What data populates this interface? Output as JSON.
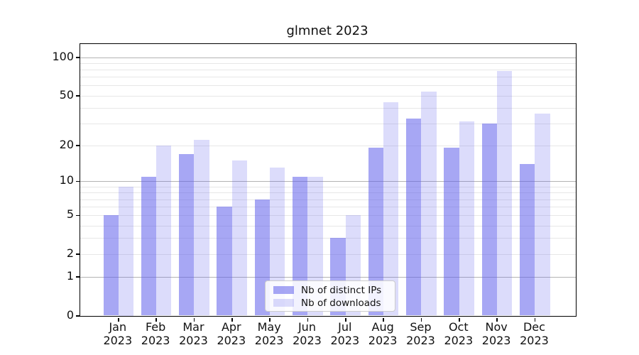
{
  "chart": {
    "title": "glmnet 2023",
    "legend_items": [
      {
        "label": "Nb of distinct IPs",
        "swatch": "dark-periwinkle"
      },
      {
        "label": "Nb of downloads",
        "swatch": "light-periwinkle"
      }
    ],
    "colors": {
      "bar_distinct_ips": "rgba(97,97,235,0.555)",
      "bar_downloads": "rgba(97,97,235,0.22)",
      "major_gridline": "#b3b3b3",
      "minor_gridline": "#e7e7e7",
      "axis": "#000000"
    }
  },
  "chart_data": {
    "type": "bar",
    "title": "glmnet 2023",
    "categories": [
      "Jan 2023",
      "Feb 2023",
      "Mar 2023",
      "Apr 2023",
      "May 2023",
      "Jun 2023",
      "Jul 2023",
      "Aug 2023",
      "Sep 2023",
      "Oct 2023",
      "Nov 2023",
      "Dec 2023"
    ],
    "series": [
      {
        "name": "Nb of distinct IPs",
        "color": "rgba(97,97,235,0.555)",
        "values": [
          5,
          11,
          17,
          6,
          7,
          11,
          3,
          19,
          33,
          19,
          30,
          14
        ]
      },
      {
        "name": "Nb of downloads",
        "color": "rgba(97,97,235,0.22)",
        "values": [
          9,
          20,
          22,
          15,
          13,
          11,
          5,
          44,
          54,
          31,
          78,
          36
        ]
      }
    ],
    "xlabel": "",
    "ylabel": "",
    "yscale": "log1p",
    "yticks": [
      0,
      1,
      2,
      5,
      10,
      20,
      50,
      100
    ],
    "ylim": [
      0,
      127
    ],
    "grid": "horizontal major (1,10,100) + minor mantissa lines",
    "legend_position": "lower center inside plot"
  }
}
